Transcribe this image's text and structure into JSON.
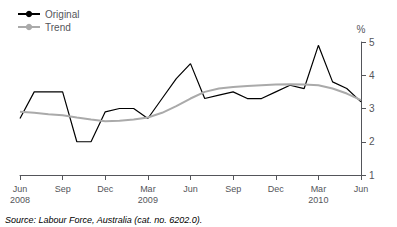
{
  "chart_data": {
    "type": "line",
    "ylabel": "%",
    "source": "Source: Labour Force, Australia (cat. no. 6202.0).",
    "categories": [
      "Jun\n2008",
      null,
      null,
      "Sep",
      null,
      null,
      "Dec",
      null,
      null,
      "Mar\n2009",
      null,
      null,
      "Jun",
      null,
      null,
      "Sep",
      null,
      null,
      "Dec",
      null,
      null,
      "Mar\n2010",
      null,
      null,
      "Jun"
    ],
    "series": [
      {
        "name": "Original",
        "color": "#000000",
        "values": [
          2.7,
          3.5,
          3.5,
          3.5,
          2.0,
          2.0,
          2.9,
          3.0,
          3.0,
          2.7,
          3.3,
          3.9,
          4.35,
          3.3,
          3.4,
          3.5,
          3.3,
          3.3,
          3.5,
          3.7,
          3.6,
          4.9,
          3.8,
          3.6,
          3.2
        ]
      },
      {
        "name": "Trend",
        "color": "#aaaaaa",
        "values": [
          2.9,
          2.87,
          2.83,
          2.8,
          2.73,
          2.67,
          2.62,
          2.63,
          2.67,
          2.73,
          2.87,
          3.07,
          3.3,
          3.5,
          3.6,
          3.65,
          3.68,
          3.7,
          3.72,
          3.73,
          3.72,
          3.7,
          3.6,
          3.45,
          3.25
        ]
      }
    ],
    "ylim": [
      1,
      5
    ],
    "yticks": [
      1,
      2,
      3,
      4,
      5
    ],
    "grid": false,
    "legend": "upper left"
  }
}
